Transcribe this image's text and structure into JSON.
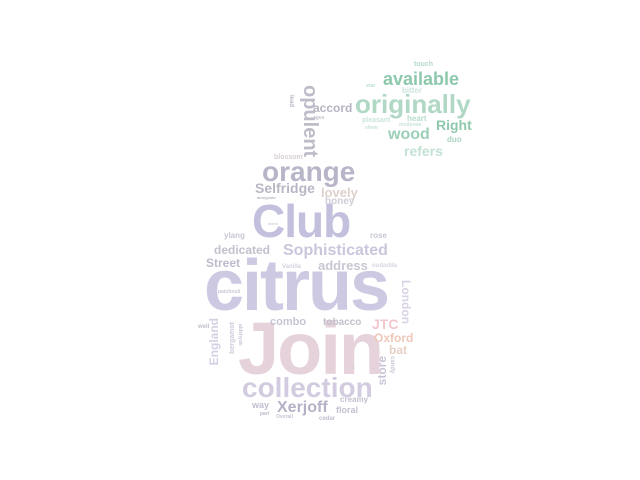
{
  "words": [
    {
      "text": "citrus",
      "color": "#cdc9e2",
      "rotated": false
    },
    {
      "text": "Join",
      "color": "#e6d2da",
      "rotated": false
    },
    {
      "text": "Club",
      "color": "#c2c0dd",
      "rotated": false
    },
    {
      "text": "collection",
      "color": "#d3cce0",
      "rotated": false
    },
    {
      "text": "orange",
      "color": "#b7b5c8",
      "rotated": false
    },
    {
      "text": "originally",
      "color": "#b0d8c5",
      "rotated": false
    },
    {
      "text": "available",
      "color": "#8dc8ad",
      "rotated": false
    },
    {
      "text": "Sophisticated",
      "color": "#c9c7dc",
      "rotated": false
    },
    {
      "text": "opulent",
      "color": "#bebcc9",
      "rotated": true
    },
    {
      "text": "wood",
      "color": "#9ccfb7",
      "rotated": false
    },
    {
      "text": "Right",
      "color": "#8fc9ad",
      "rotated": false
    },
    {
      "text": "refers",
      "color": "#c2e2d3",
      "rotated": false
    },
    {
      "text": "Selfridge",
      "color": "#b9b7c6",
      "rotated": false
    },
    {
      "text": "lovely",
      "color": "#dfd0cc",
      "rotated": false
    },
    {
      "text": "accord",
      "color": "#b6b4c3",
      "rotated": false
    },
    {
      "text": "honey",
      "color": "#cfcdd6",
      "rotated": false
    },
    {
      "text": "dedicated",
      "color": "#c2c0cd",
      "rotated": false
    },
    {
      "text": "address",
      "color": "#c9c7d3",
      "rotated": false
    },
    {
      "text": "Street",
      "color": "#bdbbcd",
      "rotated": false
    },
    {
      "text": "Xerjoff",
      "color": "#b4b2c6",
      "rotated": false
    },
    {
      "text": "JTC",
      "color": "#f1c6cc",
      "rotated": false
    },
    {
      "text": "Oxford",
      "color": "#eec7b9",
      "rotated": false
    },
    {
      "text": "bat",
      "color": "#e6d1c6",
      "rotated": false
    },
    {
      "text": "London",
      "color": "#d9d3e6",
      "rotated": true
    },
    {
      "text": "England",
      "color": "#d3d0e4",
      "rotated": true
    },
    {
      "text": "store",
      "color": "#c9c5d8",
      "rotated": true
    },
    {
      "text": "combo",
      "color": "#c7c5d4",
      "rotated": false
    },
    {
      "text": "tobacco",
      "color": "#c2c0cc",
      "rotated": false
    },
    {
      "text": "ylang",
      "color": "#c8c6d4",
      "rotated": false
    },
    {
      "text": "rose",
      "color": "#c8c6d3",
      "rotated": false
    },
    {
      "text": "way",
      "color": "#c0bed0",
      "rotated": false
    },
    {
      "text": "creamy",
      "color": "#c2c0cd",
      "rotated": false
    },
    {
      "text": "floral",
      "color": "#c3c1d0",
      "rotated": false
    },
    {
      "text": "touch",
      "color": "#b5dac9",
      "rotated": false
    },
    {
      "text": "bitter",
      "color": "#cbe5da",
      "rotated": false
    },
    {
      "text": "heart",
      "color": "#b8dccb",
      "rotated": false
    },
    {
      "text": "pleasant",
      "color": "#c9e5d9",
      "rotated": false
    },
    {
      "text": "moderate",
      "color": "#c7e4d7",
      "rotated": false
    },
    {
      "text": "duo",
      "color": "#a9d4c0",
      "rotated": false
    },
    {
      "text": "silver",
      "color": "#c6e3d6",
      "rotated": false
    },
    {
      "text": "star",
      "color": "#bfe0d1",
      "rotated": false
    },
    {
      "text": "blossom",
      "color": "#d9cfcf",
      "rotated": false
    },
    {
      "text": "lead",
      "color": "#b9b7c4",
      "rotated": true
    },
    {
      "text": "ages",
      "color": "#c5c3ce",
      "rotated": false
    },
    {
      "text": "alongside",
      "color": "#b7b5c2",
      "rotated": false
    },
    {
      "text": "Vanilla",
      "color": "#d3d1dd",
      "rotated": false
    },
    {
      "text": "oudadda",
      "color": "#d8d6e0",
      "rotated": false
    },
    {
      "text": "bergamot",
      "color": "#cecbdb",
      "rotated": true
    },
    {
      "text": "aldehyde",
      "color": "#c8c6d5",
      "rotated": true
    },
    {
      "text": "patchouli",
      "color": "#cac8d6",
      "rotated": false
    },
    {
      "text": "well",
      "color": "#c2c0cf",
      "rotated": false
    },
    {
      "text": "part",
      "color": "#bcbacc",
      "rotated": false
    },
    {
      "text": "cedar",
      "color": "#bfbdcf",
      "rotated": false
    },
    {
      "text": "Overall",
      "color": "#c7c5d4",
      "rotated": false
    },
    {
      "text": "candy",
      "color": "#c9c7d4",
      "rotated": true
    },
    {
      "text": "sleek",
      "color": "#d2d0db",
      "rotated": false
    },
    {
      "text": "zest",
      "color": "#d6d4de",
      "rotated": false
    }
  ]
}
